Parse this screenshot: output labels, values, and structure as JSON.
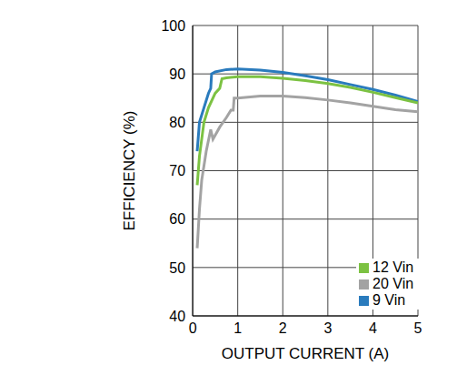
{
  "chart_data": {
    "type": "line",
    "x_label": "OUTPUT CURRENT (A)",
    "y_label": "EFFICIENCY (%)",
    "xlim": [
      0,
      5
    ],
    "xticks": [
      0,
      1,
      2,
      3,
      4,
      5
    ],
    "ylim": [
      40,
      100
    ],
    "yticks": [
      40,
      50,
      60,
      70,
      80,
      90,
      100
    ],
    "grid": true,
    "legend": "lower right",
    "series": [
      {
        "name": "9 Vin",
        "color": "#2a7bbd",
        "x": [
          0.1,
          0.15,
          0.25,
          0.35,
          0.4,
          0.42,
          0.5,
          0.75,
          1,
          1.5,
          2,
          2.5,
          3,
          3.5,
          4,
          4.5,
          5
        ],
        "values": [
          74,
          80,
          83,
          86,
          87,
          90,
          90.4,
          90.9,
          91,
          90.8,
          90.3,
          89.6,
          88.8,
          87.8,
          86.8,
          85.6,
          84.3
        ]
      },
      {
        "name": "12 Vin",
        "color": "#7cc242",
        "x": [
          0.1,
          0.15,
          0.25,
          0.35,
          0.5,
          0.6,
          0.65,
          0.75,
          1,
          1.5,
          2,
          2.5,
          3,
          3.5,
          4,
          4.5,
          5
        ],
        "values": [
          67,
          73,
          80,
          83,
          86,
          87,
          89,
          89.2,
          89.4,
          89.4,
          89.1,
          88.6,
          88,
          87.2,
          86.2,
          85.1,
          84
        ]
      },
      {
        "name": "20 Vin",
        "color": "#a3a3a3",
        "x": [
          0.1,
          0.15,
          0.2,
          0.3,
          0.4,
          0.45,
          0.6,
          0.75,
          0.85,
          0.9,
          0.92,
          1,
          1.5,
          2,
          2.5,
          3,
          3.5,
          4,
          4.5,
          5
        ],
        "values": [
          54,
          62,
          68,
          74,
          78.5,
          76.5,
          79,
          81,
          82.5,
          82.5,
          85,
          85,
          85.4,
          85.4,
          85.1,
          84.6,
          84,
          83.3,
          82.6,
          82.2
        ]
      }
    ]
  }
}
